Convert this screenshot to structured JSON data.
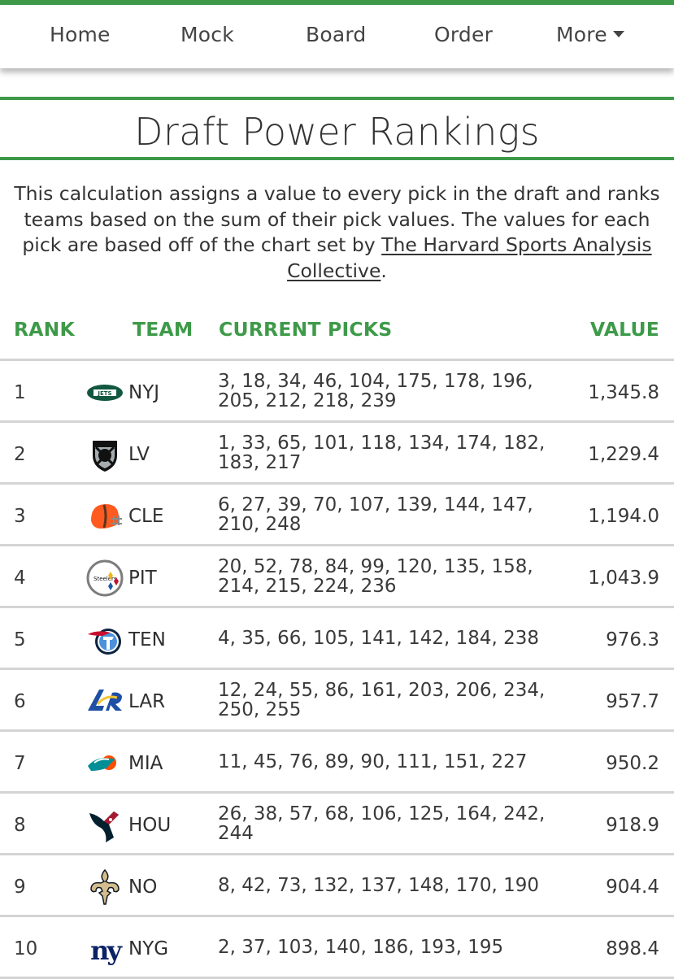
{
  "nav": {
    "items": [
      "Home",
      "Mock",
      "Board",
      "Order"
    ],
    "more_label": "More"
  },
  "page": {
    "title": "Draft Power Rankings",
    "description_before": "This calculation assigns a value to every pick in the draft and ranks teams based on the sum of their pick values. The values for each pick are based off of the chart set by ",
    "link_text": "The Harvard Sports Analysis Collective",
    "description_after": "."
  },
  "table": {
    "headers": {
      "rank": "RANK",
      "team": "TEAM",
      "picks": "CURRENT PICKS",
      "value": "VALUE"
    },
    "rows": [
      {
        "rank": "1",
        "team": "NYJ",
        "picks": "3, 18, 34, 46, 104, 175, 178, 196, 205, 212, 218, 239",
        "value": "1,345.8",
        "logo": "jets-logo"
      },
      {
        "rank": "2",
        "team": "LV",
        "picks": "1, 33, 65, 101, 118, 134, 174, 182, 183, 217",
        "value": "1,229.4",
        "logo": "raiders-logo"
      },
      {
        "rank": "3",
        "team": "CLE",
        "picks": "6, 27, 39, 70, 107, 139, 144, 147, 210, 248",
        "value": "1,194.0",
        "logo": "browns-logo"
      },
      {
        "rank": "4",
        "team": "PIT",
        "picks": "20, 52, 78, 84, 99, 120, 135, 158, 214, 215, 224, 236",
        "value": "1,043.9",
        "logo": "steelers-logo"
      },
      {
        "rank": "5",
        "team": "TEN",
        "picks": "4, 35, 66, 105, 141, 142, 184, 238",
        "value": "976.3",
        "logo": "titans-logo"
      },
      {
        "rank": "6",
        "team": "LAR",
        "picks": "12, 24, 55, 86, 161, 203, 206, 234, 250, 255",
        "value": "957.7",
        "logo": "rams-logo"
      },
      {
        "rank": "7",
        "team": "MIA",
        "picks": "11, 45, 76, 89, 90, 111, 151, 227",
        "value": "950.2",
        "logo": "dolphins-logo"
      },
      {
        "rank": "8",
        "team": "HOU",
        "picks": "26, 38, 57, 68, 106, 125, 164, 242, 244",
        "value": "918.9",
        "logo": "texans-logo"
      },
      {
        "rank": "9",
        "team": "NO",
        "picks": "8, 42, 73, 132, 137, 148, 170, 190",
        "value": "904.4",
        "logo": "saints-logo"
      },
      {
        "rank": "10",
        "team": "NYG",
        "picks": "2, 37, 103, 140, 186, 193, 195",
        "value": "898.4",
        "logo": "giants-logo"
      }
    ]
  },
  "colors": {
    "accent": "#3e9a49",
    "text": "#333333",
    "divider": "#d4d4d4"
  }
}
